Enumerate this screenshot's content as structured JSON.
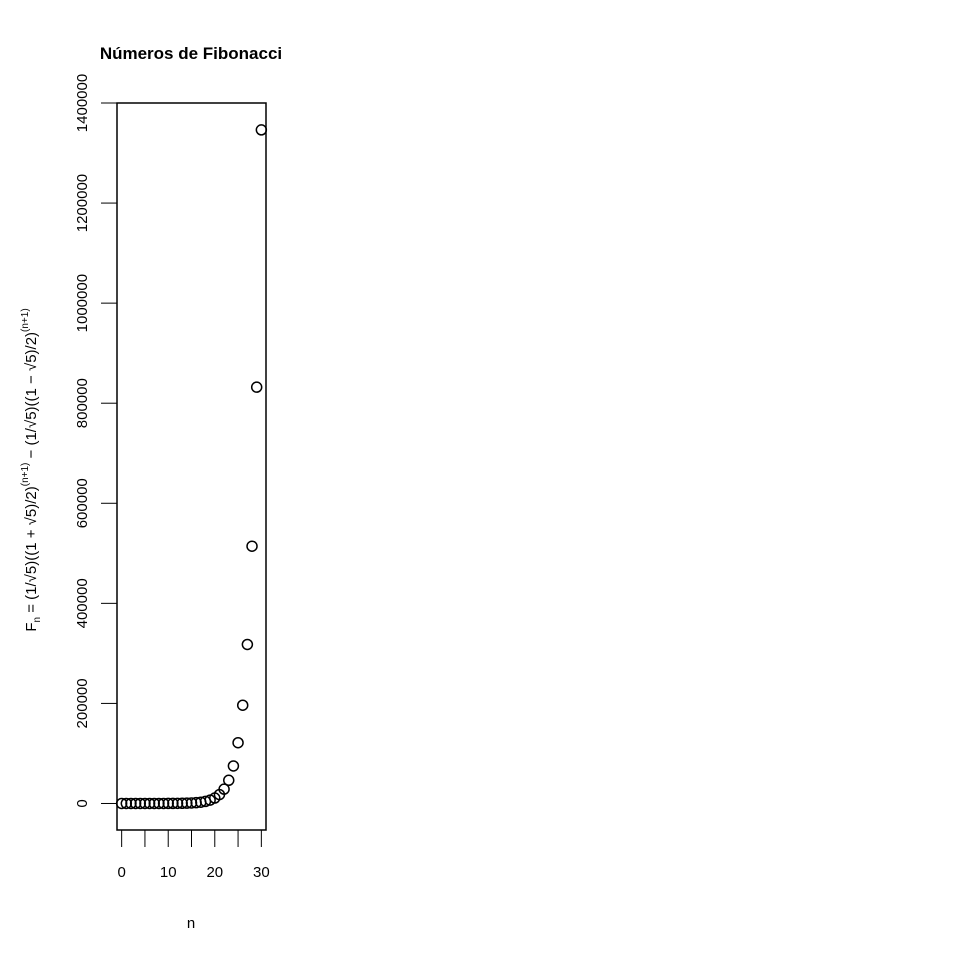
{
  "chart_data": {
    "type": "scatter",
    "title": "Números de Fibonacci",
    "xlabel": "n",
    "ylabel_parts": [
      "F",
      "n",
      " = (1/√5)((1 + √5)/2)",
      "(n+1)",
      " − (1/√5)((1 − √5)/2)",
      "(n+1)"
    ],
    "xlim": [
      -1,
      31
    ],
    "ylim": [
      -53000,
      1400000
    ],
    "xticks": [
      0,
      10,
      20,
      30
    ],
    "yticks": [
      0,
      200000,
      400000,
      600000,
      800000,
      1000000,
      1200000,
      1400000
    ],
    "marker": "open-circle",
    "x": [
      0,
      1,
      2,
      3,
      4,
      5,
      6,
      7,
      8,
      9,
      10,
      11,
      12,
      13,
      14,
      15,
      16,
      17,
      18,
      19,
      20,
      21,
      22,
      23,
      24,
      25,
      26,
      27,
      28,
      29,
      30
    ],
    "y": [
      1,
      1,
      2,
      3,
      5,
      8,
      13,
      21,
      34,
      55,
      89,
      144,
      233,
      377,
      610,
      987,
      1597,
      2584,
      4181,
      6765,
      10946,
      17711,
      28657,
      46368,
      75025,
      121393,
      196418,
      317811,
      514229,
      832040,
      1346269
    ]
  }
}
